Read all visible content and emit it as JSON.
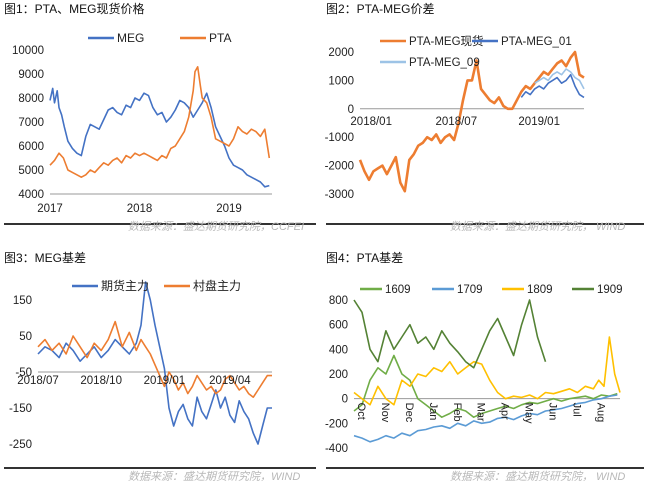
{
  "panels": [
    {
      "title": "图1：PTA、MEG现货价格",
      "source": "数据来源：盛达期货研究院，CCFEI"
    },
    {
      "title": "图2：PTA-MEG价差",
      "source": "数据来源：盛达期货研究院， WIND"
    },
    {
      "title": "图3：MEG基差",
      "source": "数据来源：盛达期货研究院，WIND"
    },
    {
      "title": "图4：PTA基差",
      "source": "数据来源：盛达期货研究院， WIND"
    }
  ],
  "chart_data": [
    {
      "type": "line",
      "title": "",
      "ylim": [
        4000,
        10000
      ],
      "yticks": [
        4000,
        5000,
        6000,
        7000,
        8000,
        9000,
        10000
      ],
      "xlim": [
        2017.0,
        2019.48
      ],
      "xticks": [
        2017,
        2018,
        2019
      ],
      "xtick_labels": [
        "2017",
        "2018",
        "2019"
      ],
      "legend_position": "top",
      "series": [
        {
          "name": "MEG",
          "color": "#4472C4",
          "x": [
            2017.0,
            2017.03,
            2017.05,
            2017.08,
            2017.1,
            2017.13,
            2017.16,
            2017.2,
            2017.25,
            2017.3,
            2017.35,
            2017.4,
            2017.45,
            2017.5,
            2017.55,
            2017.6,
            2017.65,
            2017.7,
            2017.75,
            2017.8,
            2017.85,
            2017.9,
            2017.95,
            2018.0,
            2018.05,
            2018.1,
            2018.15,
            2018.2,
            2018.25,
            2018.3,
            2018.35,
            2018.4,
            2018.45,
            2018.5,
            2018.55,
            2018.6,
            2018.65,
            2018.7,
            2018.75,
            2018.8,
            2018.85,
            2018.9,
            2018.95,
            2019.0,
            2019.05,
            2019.1,
            2019.15,
            2019.2,
            2019.25,
            2019.3,
            2019.35,
            2019.4,
            2019.45
          ],
          "y": [
            7900,
            8400,
            7800,
            8300,
            7600,
            7300,
            6800,
            6200,
            5900,
            5700,
            5600,
            6400,
            6900,
            6800,
            6700,
            7100,
            7500,
            7600,
            7400,
            7300,
            7700,
            7600,
            8000,
            7900,
            8200,
            8100,
            7600,
            7300,
            7400,
            7000,
            7200,
            7500,
            7900,
            7800,
            7600,
            7200,
            7500,
            7800,
            8200,
            7600,
            6800,
            6400,
            6000,
            5500,
            5200,
            5100,
            5000,
            4800,
            4700,
            4600,
            4500,
            4300,
            4350
          ]
        },
        {
          "name": "PTA",
          "color": "#ED7D31",
          "x": [
            2017.0,
            2017.05,
            2017.1,
            2017.15,
            2017.2,
            2017.25,
            2017.3,
            2017.35,
            2017.4,
            2017.45,
            2017.5,
            2017.55,
            2017.6,
            2017.65,
            2017.7,
            2017.75,
            2017.8,
            2017.85,
            2017.9,
            2017.95,
            2018.0,
            2018.05,
            2018.1,
            2018.15,
            2018.2,
            2018.25,
            2018.3,
            2018.35,
            2018.4,
            2018.45,
            2018.5,
            2018.55,
            2018.6,
            2018.62,
            2018.65,
            2018.68,
            2018.7,
            2018.75,
            2018.8,
            2018.85,
            2018.9,
            2018.95,
            2019.0,
            2019.05,
            2019.1,
            2019.15,
            2019.2,
            2019.25,
            2019.3,
            2019.35,
            2019.4,
            2019.45
          ],
          "y": [
            5200,
            5400,
            5700,
            5500,
            5000,
            4900,
            4800,
            4700,
            4800,
            5000,
            4900,
            5100,
            5300,
            5200,
            5400,
            5500,
            5300,
            5600,
            5500,
            5700,
            5600,
            5700,
            5600,
            5500,
            5400,
            5600,
            5500,
            5900,
            6000,
            6300,
            6600,
            7200,
            8300,
            9100,
            9300,
            8500,
            8000,
            7800,
            7200,
            6300,
            6200,
            6100,
            6000,
            6300,
            6800,
            6600,
            6500,
            6700,
            6600,
            6400,
            6700,
            5500
          ]
        }
      ]
    },
    {
      "type": "line",
      "title": "",
      "ylim": [
        -3000,
        2000
      ],
      "yticks": [
        -3000,
        -2000,
        -1000,
        0,
        1000,
        2000
      ],
      "xlim": [
        0,
        1
      ],
      "xticks": [
        0.05,
        0.43,
        0.8
      ],
      "xtick_labels": [
        "2018/01",
        "2018/07",
        "2019/01"
      ],
      "legend_position": "top",
      "series": [
        {
          "name": "PTA-MEG现货",
          "color": "#ED7D31",
          "x": [
            0.0,
            0.02,
            0.04,
            0.06,
            0.08,
            0.1,
            0.12,
            0.14,
            0.16,
            0.18,
            0.2,
            0.22,
            0.24,
            0.26,
            0.28,
            0.3,
            0.32,
            0.34,
            0.36,
            0.38,
            0.4,
            0.42,
            0.44,
            0.46,
            0.48,
            0.5,
            0.52,
            0.54,
            0.56,
            0.58,
            0.6,
            0.62,
            0.64,
            0.66,
            0.68,
            0.7,
            0.72,
            0.74,
            0.76,
            0.78,
            0.8,
            0.82,
            0.84,
            0.86,
            0.88,
            0.9,
            0.92,
            0.94,
            0.96,
            0.98,
            1.0
          ],
          "y": [
            -1800,
            -2200,
            -2500,
            -2200,
            -2100,
            -2000,
            -2300,
            -2000,
            -1700,
            -2600,
            -2900,
            -1800,
            -1600,
            -1300,
            -1200,
            -1000,
            -1100,
            -900,
            -1200,
            -1000,
            -900,
            -1100,
            -500,
            300,
            1000,
            1000,
            1700,
            700,
            500,
            300,
            200,
            400,
            100,
            0,
            0,
            300,
            600,
            800,
            700,
            900,
            1100,
            1300,
            1200,
            1400,
            1600,
            1700,
            1500,
            1800,
            2000,
            1200,
            1100
          ]
        },
        {
          "name": "PTA-MEG_01",
          "color": "#4472C4",
          "x": [
            0.72,
            0.74,
            0.76,
            0.78,
            0.8,
            0.82,
            0.84,
            0.86,
            0.88,
            0.9,
            0.92,
            0.94,
            0.96,
            0.98,
            1.0
          ],
          "y": [
            400,
            600,
            500,
            700,
            800,
            700,
            900,
            1000,
            1100,
            900,
            1000,
            1200,
            800,
            500,
            400
          ]
        },
        {
          "name": "PTA-MEG_09",
          "color": "#9DC3E6",
          "x": [
            0.78,
            0.8,
            0.82,
            0.84,
            0.86,
            0.88,
            0.9,
            0.92,
            0.94,
            0.96,
            0.98,
            1.0
          ],
          "y": [
            900,
            1000,
            1100,
            1000,
            1200,
            1300,
            1200,
            1400,
            1300,
            1100,
            1000,
            700
          ]
        }
      ]
    },
    {
      "type": "line",
      "title": "",
      "ylim": [
        -250,
        150
      ],
      "yticks": [
        -250,
        -150,
        -50,
        50,
        150
      ],
      "ytick_labels": [
        "-250",
        "-150",
        "-50",
        "50",
        "150"
      ],
      "xlim": [
        0,
        1
      ],
      "xticks": [
        0.0,
        0.27,
        0.54,
        0.82
      ],
      "xtick_labels": [
        "2018/07",
        "2018/10",
        "2019/01",
        "2019/04"
      ],
      "legend_position": "top",
      "series": [
        {
          "name": "期货主力",
          "color": "#4472C4",
          "x": [
            0.0,
            0.03,
            0.06,
            0.09,
            0.12,
            0.15,
            0.18,
            0.21,
            0.24,
            0.27,
            0.3,
            0.33,
            0.36,
            0.39,
            0.42,
            0.44,
            0.46,
            0.48,
            0.5,
            0.52,
            0.54,
            0.56,
            0.58,
            0.6,
            0.62,
            0.64,
            0.66,
            0.68,
            0.7,
            0.72,
            0.74,
            0.76,
            0.78,
            0.8,
            0.82,
            0.84,
            0.86,
            0.88,
            0.9,
            0.92,
            0.94,
            0.96,
            0.98,
            1.0
          ],
          "y": [
            0,
            20,
            10,
            -10,
            30,
            10,
            -20,
            0,
            20,
            -10,
            10,
            40,
            20,
            0,
            30,
            80,
            200,
            150,
            80,
            20,
            -40,
            -150,
            -200,
            -160,
            -140,
            -180,
            -200,
            -120,
            -160,
            -180,
            -140,
            -100,
            -150,
            -120,
            -170,
            -190,
            -130,
            -160,
            -180,
            -220,
            -250,
            -200,
            -150,
            -150
          ]
        },
        {
          "name": "村盘主力",
          "color": "#ED7D31",
          "x": [
            0.0,
            0.03,
            0.06,
            0.09,
            0.12,
            0.15,
            0.18,
            0.21,
            0.24,
            0.27,
            0.3,
            0.33,
            0.36,
            0.39,
            0.42,
            0.44,
            0.46,
            0.48,
            0.5,
            0.52,
            0.54,
            0.56,
            0.58,
            0.6,
            0.62,
            0.64,
            0.66,
            0.68,
            0.7,
            0.72,
            0.74,
            0.76,
            0.78,
            0.8,
            0.82,
            0.84,
            0.86,
            0.88,
            0.9,
            0.92,
            0.94,
            0.96,
            0.98,
            1.0
          ],
          "y": [
            20,
            40,
            10,
            30,
            0,
            50,
            20,
            -10,
            30,
            10,
            40,
            90,
            20,
            60,
            10,
            40,
            20,
            0,
            -30,
            -60,
            -90,
            -50,
            -70,
            -100,
            -80,
            -110,
            -90,
            -60,
            -80,
            -100,
            -90,
            -110,
            -100,
            -70,
            -60,
            -80,
            -100,
            -90,
            -110,
            -120,
            -100,
            -80,
            -60,
            -60
          ]
        }
      ]
    },
    {
      "type": "line",
      "title": "",
      "ylim": [
        -400,
        800
      ],
      "yticks": [
        -400,
        -200,
        0,
        200,
        400,
        600,
        800
      ],
      "xlim": [
        0,
        1
      ],
      "xticks": [
        0.0,
        0.09,
        0.18,
        0.27,
        0.36,
        0.45,
        0.54,
        0.63,
        0.72,
        0.81,
        0.9
      ],
      "xtick_labels": [
        "Oct",
        "Nov",
        "Dec",
        "Jan",
        "Feb",
        "Mar",
        "Apr",
        "May",
        "Jun",
        "Jul",
        "Aug"
      ],
      "legend_position": "top",
      "series": [
        {
          "name": "1609",
          "color": "#70AD47",
          "x": [
            0.0,
            0.03,
            0.06,
            0.09,
            0.12,
            0.15,
            0.18,
            0.21,
            0.24,
            0.27,
            0.3,
            0.33,
            0.36,
            0.39,
            0.42,
            0.45,
            0.48,
            0.51,
            0.54,
            0.57,
            0.6,
            0.63,
            0.66,
            0.69,
            0.72,
            0.75,
            0.78,
            0.81,
            0.84,
            0.87,
            0.9,
            0.93,
            0.96,
            0.99
          ],
          "y": [
            -100,
            -50,
            150,
            250,
            200,
            350,
            200,
            150,
            0,
            -50,
            -100,
            -150,
            -120,
            -80,
            -100,
            -150,
            -120,
            -100,
            -80,
            -60,
            -80,
            -50,
            -30,
            -40,
            -20,
            0,
            -20,
            0,
            10,
            20,
            0,
            30,
            20,
            40
          ]
        },
        {
          "name": "1709",
          "color": "#5B9BD5",
          "x": [
            0.0,
            0.03,
            0.06,
            0.09,
            0.12,
            0.15,
            0.18,
            0.21,
            0.24,
            0.27,
            0.3,
            0.33,
            0.36,
            0.39,
            0.42,
            0.45,
            0.48,
            0.51,
            0.54,
            0.57,
            0.6,
            0.63,
            0.66,
            0.69,
            0.72,
            0.75,
            0.78,
            0.81,
            0.84,
            0.87,
            0.9,
            0.93,
            0.96,
            0.99
          ],
          "y": [
            -300,
            -320,
            -350,
            -330,
            -300,
            -320,
            -280,
            -300,
            -260,
            -250,
            -230,
            -220,
            -240,
            -200,
            -220,
            -180,
            -200,
            -190,
            -160,
            -150,
            -170,
            -140,
            -120,
            -130,
            -100,
            -90,
            -80,
            -60,
            -40,
            -30,
            -10,
            0,
            20,
            30
          ]
        },
        {
          "name": "1809",
          "color": "#FFC000",
          "x": [
            0.0,
            0.03,
            0.06,
            0.09,
            0.12,
            0.15,
            0.18,
            0.21,
            0.24,
            0.27,
            0.3,
            0.33,
            0.36,
            0.39,
            0.42,
            0.45,
            0.48,
            0.51,
            0.54,
            0.57,
            0.6,
            0.63,
            0.66,
            0.69,
            0.72,
            0.75,
            0.78,
            0.81,
            0.84,
            0.87,
            0.9,
            0.92,
            0.94,
            0.96,
            0.98,
            1.0
          ],
          "y": [
            50,
            0,
            -50,
            100,
            0,
            -50,
            150,
            100,
            200,
            180,
            250,
            220,
            300,
            200,
            250,
            300,
            280,
            150,
            50,
            0,
            20,
            10,
            30,
            0,
            50,
            40,
            60,
            80,
            50,
            100,
            80,
            150,
            100,
            500,
            200,
            50
          ]
        },
        {
          "name": "1909",
          "color": "#548235",
          "x": [
            0.0,
            0.03,
            0.06,
            0.09,
            0.12,
            0.15,
            0.18,
            0.21,
            0.24,
            0.27,
            0.3,
            0.33,
            0.36,
            0.39,
            0.42,
            0.45,
            0.48,
            0.51,
            0.54,
            0.57,
            0.6,
            0.63,
            0.66,
            0.69,
            0.72
          ],
          "y": [
            800,
            700,
            400,
            300,
            550,
            400,
            500,
            600,
            450,
            500,
            400,
            550,
            450,
            380,
            300,
            250,
            400,
            550,
            650,
            500,
            350,
            600,
            800,
            500,
            300
          ]
        }
      ]
    }
  ]
}
